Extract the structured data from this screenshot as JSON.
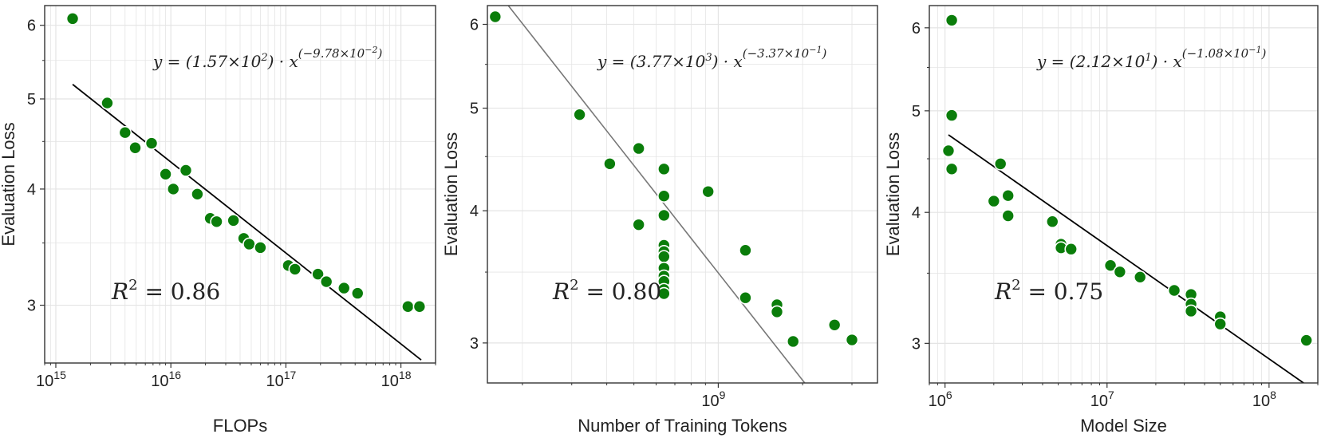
{
  "colors": {
    "point_fill": "#0a7d0a",
    "point_stroke": "#ffffff",
    "fit_line_panel_1": "#000000",
    "fit_line_panel_2": "#777777",
    "fit_line_panel_3": "#000000",
    "grid": "#e4e4e4",
    "frame": "#333333"
  },
  "chart_data": [
    {
      "type": "scatter",
      "xlabel": "FLOPs",
      "ylabel": "Evaluation Loss",
      "x_scale": "log",
      "y_scale": "log",
      "xlim": [
        800000000000000.0,
        2e+18
      ],
      "ylim": [
        2.6,
        6.3
      ],
      "x_ticks": [
        {
          "value": 1000000000000000.0,
          "base": "10",
          "exp": "15"
        },
        {
          "value": 1e+16,
          "base": "10",
          "exp": "16"
        },
        {
          "value": 1e+17,
          "base": "10",
          "exp": "17"
        },
        {
          "value": 1e+18,
          "base": "10",
          "exp": "18"
        }
      ],
      "y_ticks": [
        3,
        4,
        5,
        6
      ],
      "grid": true,
      "equation": "y = (1.57×10²) · x^(−9.78×10⁻²)",
      "equation_parts": {
        "lhs": "y = (1.57×10",
        "mantissa_exp": "2",
        "mid": ") · x",
        "power": "(−9.78×10",
        "power_exp": "−2",
        "close": ")"
      },
      "r2_label": "R",
      "r2_exp": "2",
      "r2_value": "= 0.86",
      "fit": {
        "a": 157,
        "b": -0.0978,
        "x_range": [
          1400000000000000.0,
          1.5e+18
        ]
      },
      "points": [
        {
          "x": 1400000000000000.0,
          "y": 6.1
        },
        {
          "x": 2800000000000000.0,
          "y": 4.95
        },
        {
          "x": 4000000000000000.0,
          "y": 4.6
        },
        {
          "x": 4900000000000000.0,
          "y": 4.43
        },
        {
          "x": 6800000000000000.0,
          "y": 4.48
        },
        {
          "x": 9000000000000000.0,
          "y": 4.15
        },
        {
          "x": 1.05e+16,
          "y": 4.0
        },
        {
          "x": 1.35e+16,
          "y": 4.19
        },
        {
          "x": 1.7e+16,
          "y": 3.95
        },
        {
          "x": 2.2e+16,
          "y": 3.72
        },
        {
          "x": 2.5e+16,
          "y": 3.69
        },
        {
          "x": 3.5e+16,
          "y": 3.7
        },
        {
          "x": 4.3e+16,
          "y": 3.54
        },
        {
          "x": 4.8e+16,
          "y": 3.49
        },
        {
          "x": 6e+16,
          "y": 3.46
        },
        {
          "x": 1.05e+17,
          "y": 3.31
        },
        {
          "x": 1.2e+17,
          "y": 3.28
        },
        {
          "x": 1.9e+17,
          "y": 3.24
        },
        {
          "x": 2.25e+17,
          "y": 3.18
        },
        {
          "x": 3.2e+17,
          "y": 3.13
        },
        {
          "x": 4.2e+17,
          "y": 3.09
        },
        {
          "x": 1.15e+18,
          "y": 2.99
        },
        {
          "x": 1.45e+18,
          "y": 2.99
        }
      ]
    },
    {
      "type": "scatter",
      "xlabel": "Number of Training Tokens",
      "ylabel": "Evaluation Loss",
      "x_scale": "log",
      "y_scale": "log",
      "xlim": [
        150000000.0,
        3700000000.0
      ],
      "ylim": [
        2.75,
        6.25
      ],
      "x_ticks": [
        {
          "value": 1000000000.0,
          "base": "10",
          "exp": "9"
        }
      ],
      "y_ticks": [
        3,
        4,
        5,
        6
      ],
      "grid": true,
      "equation": "y = (3.77×10³) · x^(−3.37×10⁻¹)",
      "equation_parts": {
        "lhs": "y = (3.77×10",
        "mantissa_exp": "3",
        "mid": ") · x",
        "power": "(−3.37×10",
        "power_exp": "−1",
        "close": ")"
      },
      "r2_label": "R",
      "r2_exp": "2",
      "r2_value": "= 0.80",
      "fit": {
        "a": 3770,
        "b": -0.337,
        "x_range": [
          160000000.0,
          3000000000.0
        ]
      },
      "points": [
        {
          "x": 160000000.0,
          "y": 6.1
        },
        {
          "x": 320000000.0,
          "y": 4.93
        },
        {
          "x": 410000000.0,
          "y": 4.43
        },
        {
          "x": 520000000.0,
          "y": 3.88
        },
        {
          "x": 520000000.0,
          "y": 4.58
        },
        {
          "x": 640000000.0,
          "y": 4.38
        },
        {
          "x": 640000000.0,
          "y": 4.13
        },
        {
          "x": 640000000.0,
          "y": 3.96
        },
        {
          "x": 640000000.0,
          "y": 3.71
        },
        {
          "x": 640000000.0,
          "y": 3.66
        },
        {
          "x": 640000000.0,
          "y": 3.62
        },
        {
          "x": 640000000.0,
          "y": 3.53
        },
        {
          "x": 640000000.0,
          "y": 3.47
        },
        {
          "x": 640000000.0,
          "y": 3.43
        },
        {
          "x": 640000000.0,
          "y": 3.37
        },
        {
          "x": 640000000.0,
          "y": 3.34
        },
        {
          "x": 920000000.0,
          "y": 4.17
        },
        {
          "x": 1250000000.0,
          "y": 3.67
        },
        {
          "x": 1250000000.0,
          "y": 3.31
        },
        {
          "x": 1620000000.0,
          "y": 3.26
        },
        {
          "x": 1620000000.0,
          "y": 3.21
        },
        {
          "x": 1850000000.0,
          "y": 3.01
        },
        {
          "x": 2600000000.0,
          "y": 3.12
        },
        {
          "x": 3000000000.0,
          "y": 3.02
        }
      ]
    },
    {
      "type": "scatter",
      "xlabel": "Model Size",
      "ylabel": "Evaluation Loss",
      "x_scale": "log",
      "y_scale": "log",
      "xlim": [
        800000.0,
        200000000.0
      ],
      "ylim": [
        2.75,
        6.3
      ],
      "x_ticks": [
        {
          "value": 1000000.0,
          "base": "10",
          "exp": "6"
        },
        {
          "value": 10000000.0,
          "base": "10",
          "exp": "7"
        },
        {
          "value": 100000000.0,
          "base": "10",
          "exp": "8"
        }
      ],
      "y_ticks": [
        3,
        4,
        5,
        6
      ],
      "grid": true,
      "equation": "y = (2.12×10¹) · x^(−1.08×10⁻¹)",
      "equation_parts": {
        "lhs": "y = (2.12×10",
        "mantissa_exp": "1",
        "mid": ") · x",
        "power": "(−1.08×10",
        "power_exp": "−1",
        "close": ")"
      },
      "r2_label": "R",
      "r2_exp": "2",
      "r2_value": "= 0.75",
      "fit": {
        "a": 21.2,
        "b": -0.108,
        "x_range": [
          1050000.0,
          170000000.0
        ]
      },
      "points": [
        {
          "x": 1100000.0,
          "y": 6.1
        },
        {
          "x": 1100000.0,
          "y": 4.95
        },
        {
          "x": 1050000.0,
          "y": 4.58
        },
        {
          "x": 1100000.0,
          "y": 4.4
        },
        {
          "x": 2000000.0,
          "y": 4.1
        },
        {
          "x": 2200000.0,
          "y": 4.45
        },
        {
          "x": 2450000.0,
          "y": 4.15
        },
        {
          "x": 2450000.0,
          "y": 3.97
        },
        {
          "x": 4600000.0,
          "y": 3.92
        },
        {
          "x": 5200000.0,
          "y": 3.73
        },
        {
          "x": 5200000.0,
          "y": 3.7
        },
        {
          "x": 6000000.0,
          "y": 3.69
        },
        {
          "x": 10500000.0,
          "y": 3.56
        },
        {
          "x": 12000000.0,
          "y": 3.51
        },
        {
          "x": 16000000.0,
          "y": 3.47
        },
        {
          "x": 26000000.0,
          "y": 3.37
        },
        {
          "x": 33000000.0,
          "y": 3.34
        },
        {
          "x": 33000000.0,
          "y": 3.27
        },
        {
          "x": 33000000.0,
          "y": 3.22
        },
        {
          "x": 50000000.0,
          "y": 3.18
        },
        {
          "x": 50000000.0,
          "y": 3.13
        },
        {
          "x": 170000000.0,
          "y": 3.02
        }
      ]
    }
  ]
}
